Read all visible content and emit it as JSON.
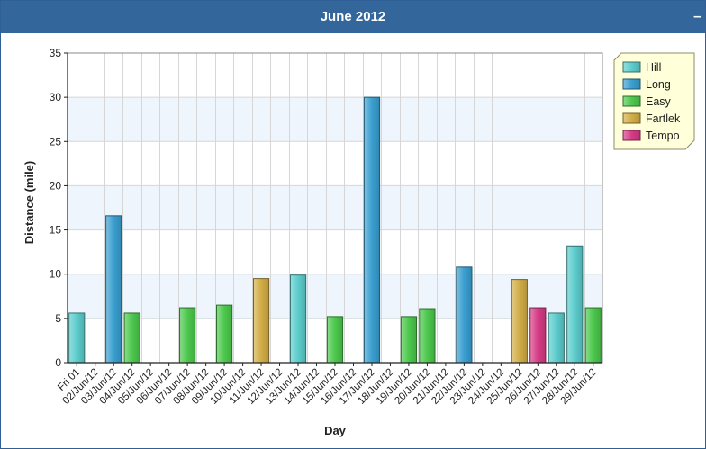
{
  "panel": {
    "title": "June 2012",
    "collapse_label": "–"
  },
  "colors": {
    "Hill": "#5ccccc",
    "Long": "#3a9fd0",
    "Easy": "#4cc84c",
    "Fartlek": "#d2ad46",
    "Tempo": "#d63b86"
  },
  "chart_data": {
    "type": "bar",
    "xlabel": "Day",
    "ylabel": "Distance (mile)",
    "ylim": [
      0,
      35
    ],
    "yticks": [
      0,
      5,
      10,
      15,
      20,
      25,
      30,
      35
    ],
    "grid": true,
    "legend_position": "top-right",
    "legend": [
      "Hill",
      "Long",
      "Easy",
      "Fartlek",
      "Tempo"
    ],
    "categories": [
      "Fri 01",
      "02/Jun/12",
      "03/Jun/12",
      "04/Jun/12",
      "05/Jun/12",
      "06/Jun/12",
      "07/Jun/12",
      "08/Jun/12",
      "09/Jun/12",
      "10/Jun/12",
      "11/Jun/12",
      "12/Jun/12",
      "13/Jun/12",
      "14/Jun/12",
      "15/Jun/12",
      "16/Jun/12",
      "17/Jun/12",
      "18/Jun/12",
      "19/Jun/12",
      "20/Jun/12",
      "21/Jun/12",
      "22/Jun/12",
      "23/Jun/12",
      "24/Jun/12",
      "25/Jun/12",
      "26/Jun/12",
      "27/Jun/12",
      "28/Jun/12",
      "29/Jun/12"
    ],
    "bars": [
      {
        "category": "Fri 01",
        "value": 5.6,
        "series": "Hill"
      },
      {
        "category": "03/Jun/12",
        "value": 16.6,
        "series": "Long"
      },
      {
        "category": "04/Jun/12",
        "value": 5.6,
        "series": "Easy"
      },
      {
        "category": "07/Jun/12",
        "value": 6.2,
        "series": "Easy"
      },
      {
        "category": "09/Jun/12",
        "value": 6.5,
        "series": "Easy"
      },
      {
        "category": "11/Jun/12",
        "value": 9.5,
        "series": "Fartlek"
      },
      {
        "category": "13/Jun/12",
        "value": 9.9,
        "series": "Hill"
      },
      {
        "category": "15/Jun/12",
        "value": 5.2,
        "series": "Easy"
      },
      {
        "category": "17/Jun/12",
        "value": 30,
        "series": "Long"
      },
      {
        "category": "19/Jun/12",
        "value": 5.2,
        "series": "Easy"
      },
      {
        "category": "20/Jun/12",
        "value": 6.1,
        "series": "Easy"
      },
      {
        "category": "22/Jun/12",
        "value": 10.8,
        "series": "Long"
      },
      {
        "category": "25/Jun/12",
        "value": 9.4,
        "series": "Fartlek"
      },
      {
        "category": "26/Jun/12",
        "value": 6.2,
        "series": "Tempo"
      },
      {
        "category": "27/Jun/12",
        "value": 5.6,
        "series": "Hill"
      },
      {
        "category": "28/Jun/12",
        "value": 13.2,
        "series": "Hill"
      },
      {
        "category": "29/Jun/12",
        "value": 6.2,
        "series": "Easy"
      }
    ]
  }
}
